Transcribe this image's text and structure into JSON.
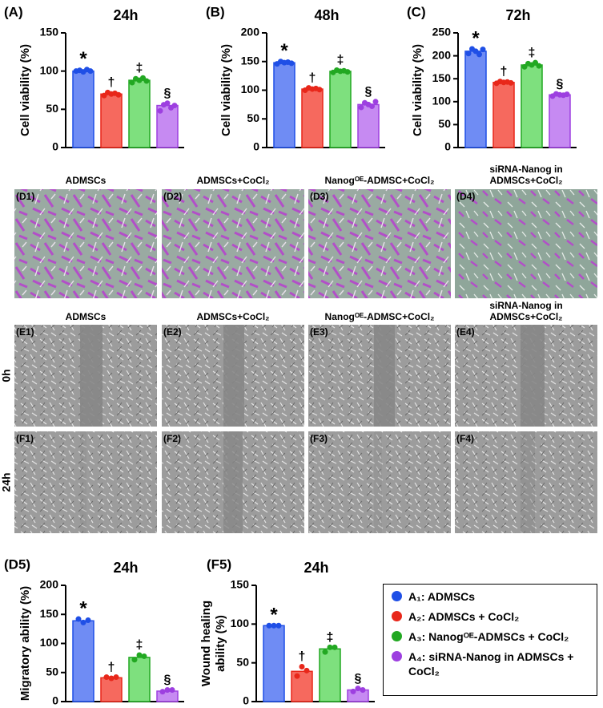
{
  "chart_data": [
    {
      "type": "bar",
      "panel": "(A)",
      "title": "24h",
      "ylabel": [
        "Cell viability (%)"
      ],
      "ylim": [
        0,
        150
      ],
      "yticks": [
        0,
        50,
        100,
        150
      ],
      "values": [
        100,
        70,
        88,
        55
      ],
      "annotations": [
        "*",
        "†",
        "‡",
        "§"
      ],
      "points": [
        [
          100,
          101,
          99,
          102,
          100
        ],
        [
          68,
          72,
          70,
          71,
          69
        ],
        [
          85,
          90,
          88,
          91,
          87
        ],
        [
          48,
          56,
          58,
          52,
          55
        ]
      ]
    },
    {
      "type": "bar",
      "panel": "(B)",
      "title": "48h",
      "ylabel": [
        "Cell viability (%)"
      ],
      "ylim": [
        0,
        200
      ],
      "yticks": [
        0,
        50,
        100,
        150,
        200
      ],
      "values": [
        148,
        102,
        133,
        75
      ],
      "annotations": [
        "*",
        "†",
        "‡",
        "§"
      ],
      "points": [
        [
          146,
          150,
          148,
          149,
          147
        ],
        [
          100,
          104,
          102,
          103,
          101
        ],
        [
          131,
          135,
          133,
          134,
          132
        ],
        [
          70,
          78,
          75,
          72,
          80
        ]
      ]
    },
    {
      "type": "bar",
      "panel": "(C)",
      "title": "72h",
      "ylabel": [
        "Cell viability (%)"
      ],
      "ylim": [
        0,
        250
      ],
      "yticks": [
        0,
        50,
        100,
        150,
        200,
        250
      ],
      "values": [
        210,
        142,
        180,
        115
      ],
      "annotations": [
        "*",
        "†",
        "‡",
        "§"
      ],
      "points": [
        [
          205,
          215,
          210,
          203,
          214
        ],
        [
          140,
          144,
          142,
          143,
          141
        ],
        [
          176,
          183,
          180,
          185,
          178
        ],
        [
          112,
          117,
          115,
          114,
          116
        ]
      ]
    },
    {
      "type": "bar",
      "panel": "(D5)",
      "title": "24h",
      "ylabel": [
        "Migratory ability (%)"
      ],
      "ylim": [
        0,
        200
      ],
      "yticks": [
        0,
        50,
        100,
        150,
        200
      ],
      "values": [
        139,
        41,
        76,
        18
      ],
      "annotations": [
        "*",
        "†",
        "‡",
        "§"
      ],
      "points": [
        [
          142,
          136,
          140
        ],
        [
          42,
          40,
          42
        ],
        [
          72,
          80,
          78
        ],
        [
          17,
          20,
          20
        ]
      ]
    },
    {
      "type": "bar",
      "panel": "(F5)",
      "title": "24h",
      "ylabel": [
        "Wound healing",
        "ability (%)"
      ],
      "ylim": [
        0,
        150
      ],
      "yticks": [
        0,
        50,
        100,
        150
      ],
      "values": [
        98,
        39,
        68,
        15
      ],
      "annotations": [
        "*",
        "†",
        "‡",
        "§"
      ],
      "points": [
        [
          98,
          98,
          98
        ],
        [
          33,
          45,
          40
        ],
        [
          64,
          70,
          70
        ],
        [
          13,
          17,
          15
        ]
      ]
    }
  ],
  "legend": {
    "entries": [
      {
        "name": "A₁: ADMSCs",
        "color": "#1f4fe6",
        "fill": "#6f8cf4"
      },
      {
        "name": "A₂: ADMSCs + CoCl₂",
        "color": "#e8271a",
        "fill": "#f6695e"
      },
      {
        "name": "A₃: Nanogᴼᴱ-ADMSCs + CoCl₂",
        "color": "#22a822",
        "fill": "#7ee07e"
      },
      {
        "name": "A₄: siRNA-Nanog in ADMSCs + CoCl₂",
        "color": "#9d3fe0",
        "fill": "#c68af2"
      }
    ]
  },
  "image_panels": {
    "stain": {
      "headers": [
        "ADMSCs",
        "ADMSCs+CoCl₂",
        "Nanogᴼᴱ-ADMSC+CoCl₂",
        "siRNA-Nanog in ADMSCs+CoCl₂"
      ],
      "labels": [
        "(D1)",
        "(D2)",
        "(D3)",
        "(D4)"
      ]
    },
    "wound": {
      "headers": [
        "ADMSCs",
        "ADMSCs+CoCl₂",
        "Nanogᴼᴱ-ADMSC+CoCl₂",
        "siRNA-Nanog in ADMSCs+CoCl₂"
      ],
      "row_labels": [
        "0h",
        "24h"
      ],
      "labels": [
        [
          "(E1)",
          "(E2)",
          "(E3)",
          "(E4)"
        ],
        [
          "(F1)",
          "(F2)",
          "(F3)",
          "(F4)"
        ]
      ]
    }
  }
}
